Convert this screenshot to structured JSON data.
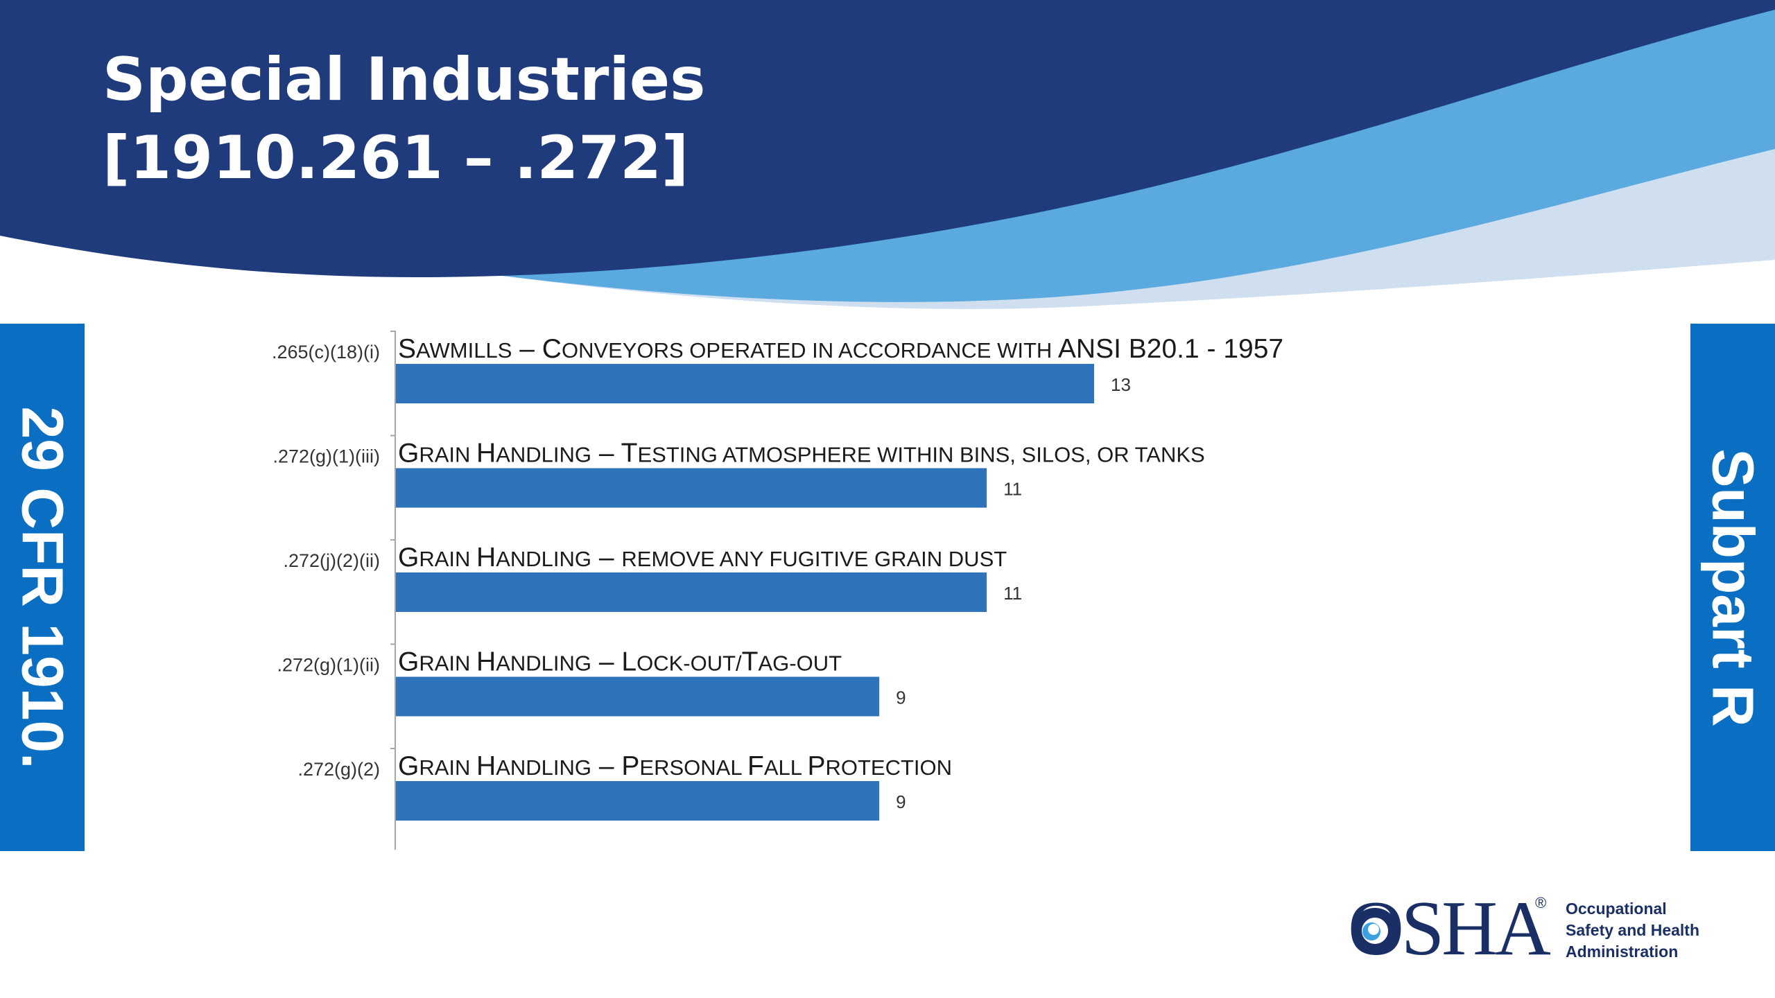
{
  "slide": {
    "title_line_1": "Special Industries",
    "title_line_2": "[1910.261 – .272]",
    "left_tab": "29 CFR 1910.",
    "right_tab": "Subpart R"
  },
  "colors": {
    "header_dark": "#1f3b7c",
    "wave_mid": "#5aa9df",
    "wave_light": "#cfdff0",
    "bar": "#2f74bb",
    "tab": "#0a6fc2"
  },
  "logo": {
    "wordmark": "OSHA",
    "registered": "®",
    "lines": [
      "Occupational",
      "Safety and Health",
      "Administration"
    ]
  },
  "chart_data": {
    "type": "bar",
    "orientation": "horizontal",
    "categories": [
      ".265(c)(18)(i)",
      ".272(g)(1)(iii)",
      ".272(j)(2)(ii)",
      ".272(g)(1)(ii)",
      ".272(g)(2)"
    ],
    "descriptions": [
      [
        {
          "t": "S",
          "s": "big"
        },
        {
          "t": "AWMILLS",
          "s": "small"
        },
        {
          "t": " – ",
          "s": "big"
        },
        {
          "t": "C",
          "s": "big"
        },
        {
          "t": "ONVEYORS OPERATED IN ACCORDANCE WITH ",
          "s": "small"
        },
        {
          "t": "ANSI B20.1 - 1957",
          "s": "big"
        }
      ],
      [
        {
          "t": "G",
          "s": "big"
        },
        {
          "t": "RAIN ",
          "s": "small"
        },
        {
          "t": "H",
          "s": "big"
        },
        {
          "t": "ANDLING",
          "s": "small"
        },
        {
          "t": " – ",
          "s": "big"
        },
        {
          "t": "T",
          "s": "big"
        },
        {
          "t": "ESTING ATMOSPHERE WITHIN BINS, SILOS, OR TANKS",
          "s": "small"
        }
      ],
      [
        {
          "t": "G",
          "s": "big"
        },
        {
          "t": "RAIN ",
          "s": "small"
        },
        {
          "t": "H",
          "s": "big"
        },
        {
          "t": "ANDLING",
          "s": "small"
        },
        {
          "t": " – ",
          "s": "big"
        },
        {
          "t": "REMOVE ANY FUGITIVE GRAIN DUST",
          "s": "small"
        }
      ],
      [
        {
          "t": "G",
          "s": "big"
        },
        {
          "t": "RAIN ",
          "s": "small"
        },
        {
          "t": "H",
          "s": "big"
        },
        {
          "t": "ANDLING",
          "s": "small"
        },
        {
          "t": " – ",
          "s": "big"
        },
        {
          "t": "L",
          "s": "big"
        },
        {
          "t": "OCK-OUT/",
          "s": "small"
        },
        {
          "t": "T",
          "s": "big"
        },
        {
          "t": "AG-OUT",
          "s": "small"
        }
      ],
      [
        {
          "t": "G",
          "s": "big"
        },
        {
          "t": "RAIN ",
          "s": "small"
        },
        {
          "t": "H",
          "s": "big"
        },
        {
          "t": "ANDLING",
          "s": "small"
        },
        {
          "t": " – ",
          "s": "big"
        },
        {
          "t": "P",
          "s": "big"
        },
        {
          "t": "ERSONAL ",
          "s": "small"
        },
        {
          "t": "F",
          "s": "big"
        },
        {
          "t": "ALL ",
          "s": "small"
        },
        {
          "t": "P",
          "s": "big"
        },
        {
          "t": "ROTECTION",
          "s": "small"
        }
      ]
    ],
    "values": [
      13,
      11,
      11,
      9,
      9
    ],
    "xlim": [
      0,
      13
    ],
    "grid": false,
    "legend": "none"
  }
}
